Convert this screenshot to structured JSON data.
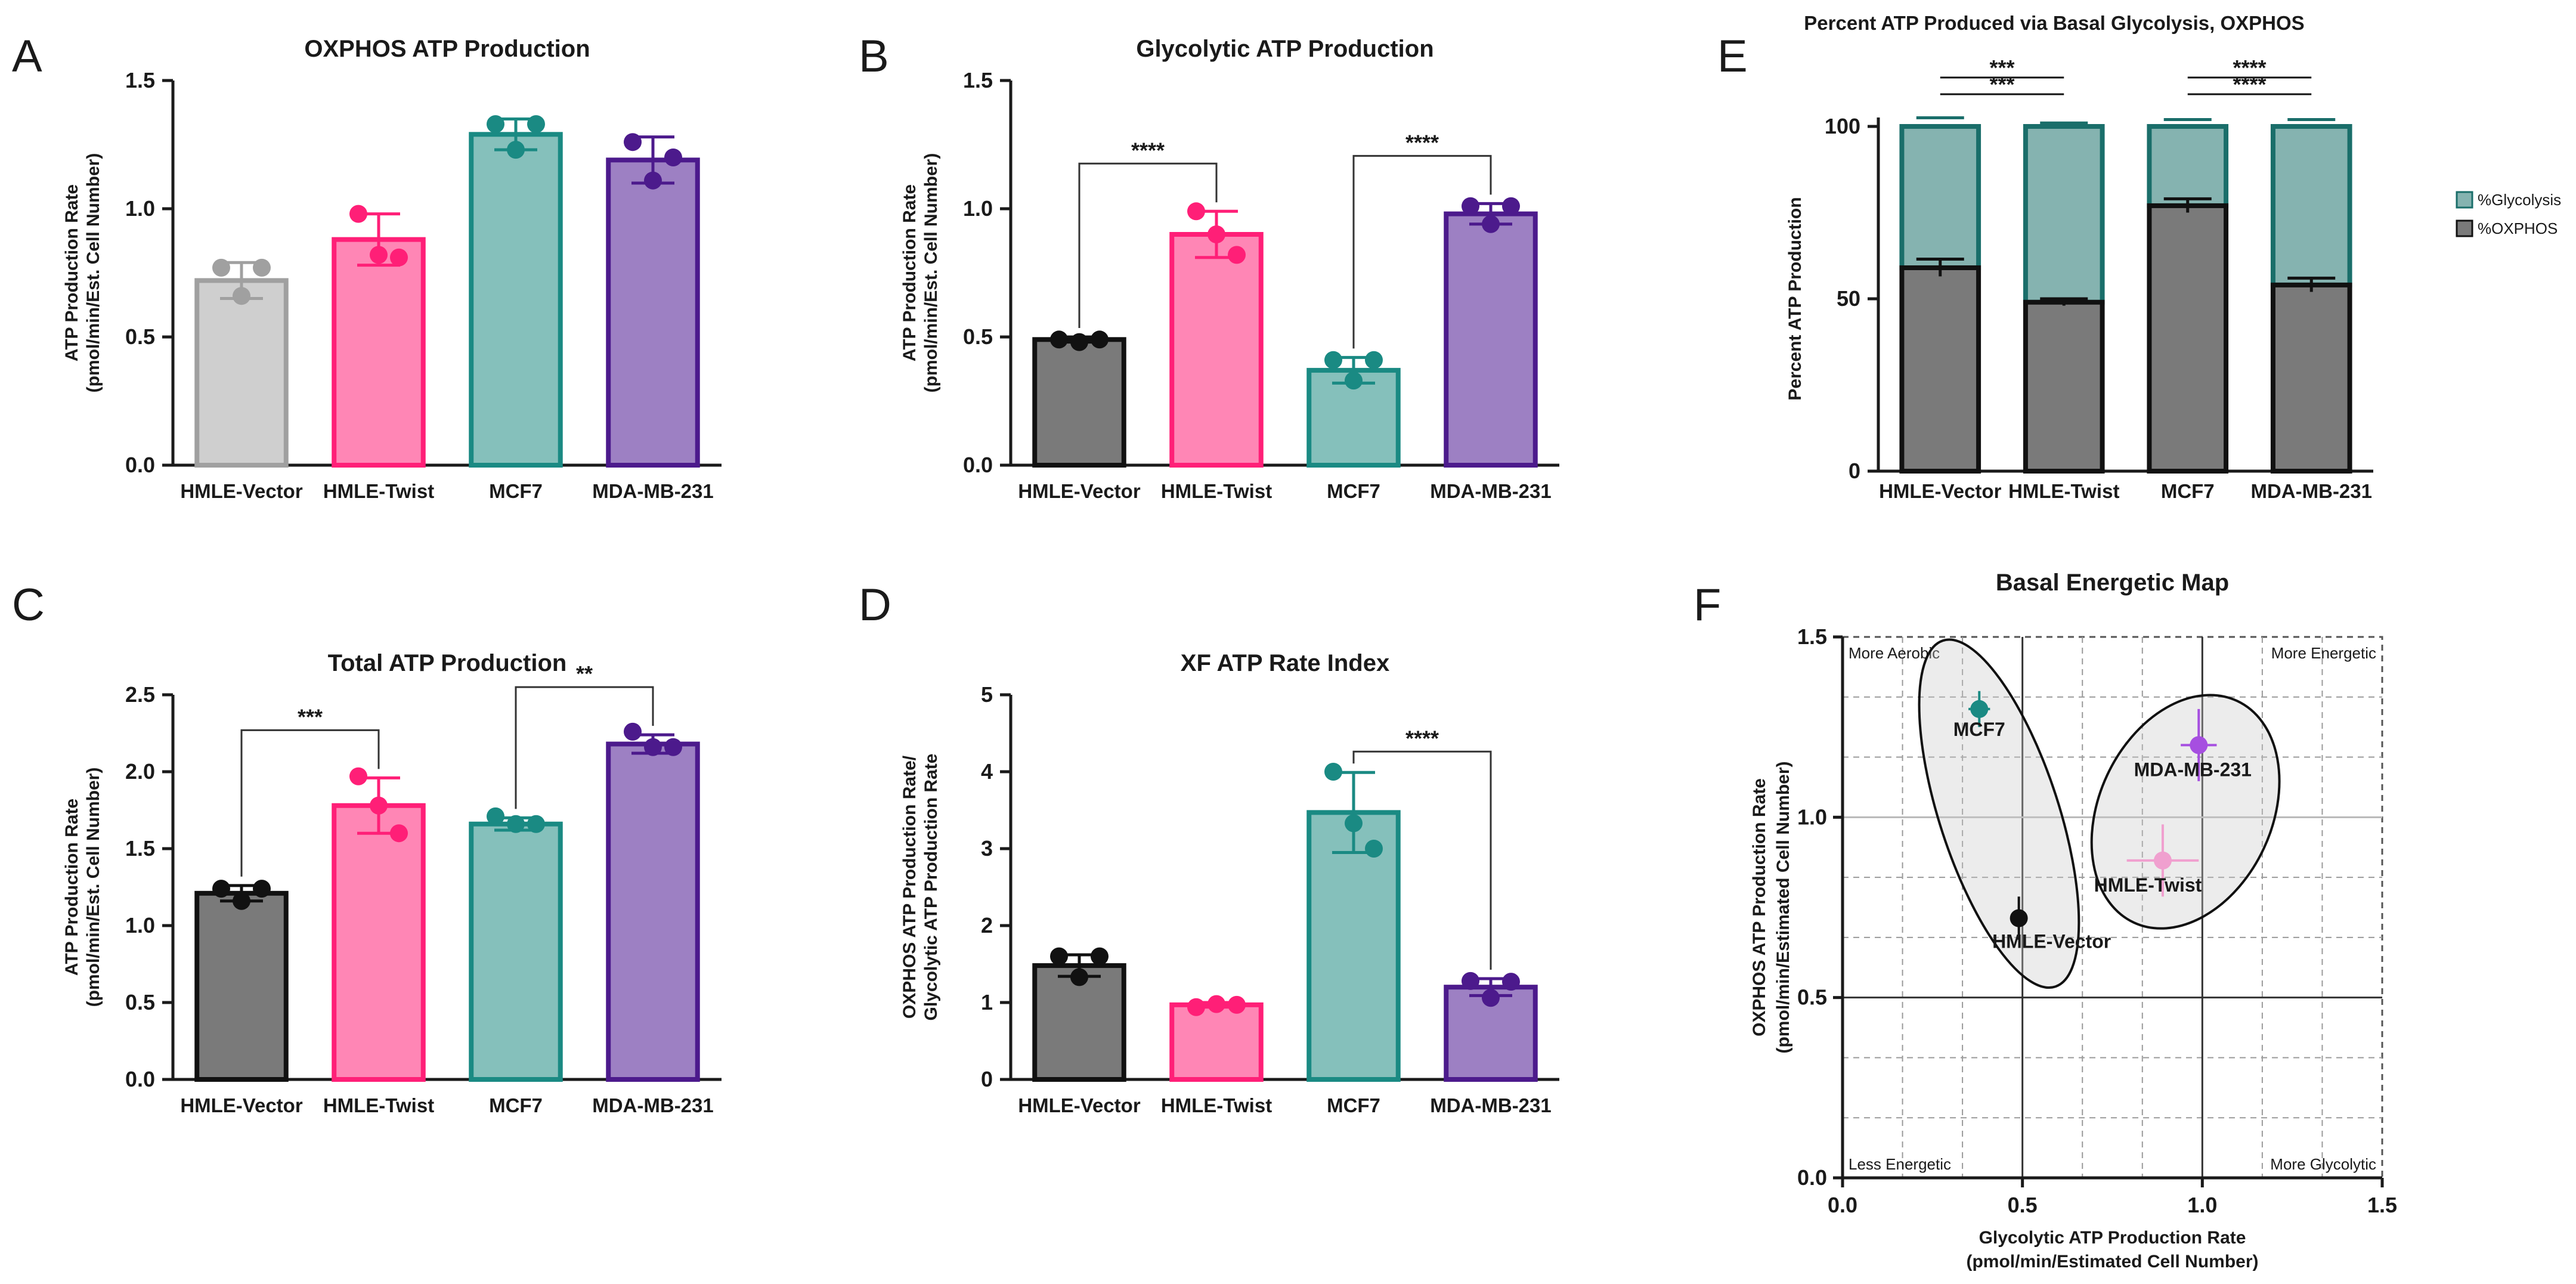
{
  "colors": {
    "vector": "#7a7a7a",
    "vector_light": "#cfcfcf",
    "vector_light_edge": "#a0a0a0",
    "twist": "#ff86b5",
    "twist_edge": "#ff1f77",
    "mcf7": "#85c0bb",
    "mcf7_edge": "#1a8a83",
    "mda": "#9d80c3",
    "mda_edge": "#4c1a8c",
    "glycolysis": "#85b3b0",
    "glycolysis_edge": "#1a6e6a",
    "oxphos": "#7a7a7a",
    "mcf7_dot": "#1a8a83",
    "mda_dot": "#a64fe0",
    "twist_dot": "#f0a0cf",
    "vector_dot": "#111111"
  },
  "chart_data": [
    {
      "id": "A",
      "type": "bar",
      "panel_letter": "A",
      "title": "OXPHOS ATP Production",
      "ylabel": [
        "ATP Production Rate",
        "(pmol/min/Est. Cell Number)"
      ],
      "categories": [
        "HMLE-Vector",
        "HMLE-Twist",
        "MCF7",
        "MDA-MB-231"
      ],
      "values": [
        0.72,
        0.88,
        1.29,
        1.19
      ],
      "errors": [
        0.07,
        0.1,
        0.06,
        0.09
      ],
      "points": [
        [
          0.77,
          0.77,
          0.66
        ],
        [
          0.98,
          0.81,
          0.82
        ],
        [
          1.33,
          1.33,
          1.23
        ],
        [
          1.26,
          1.2,
          1.11
        ]
      ],
      "ylim": [
        0,
        1.5
      ],
      "yticks": [
        "0.0",
        "0.5",
        "1.0",
        "1.5"
      ],
      "significance": []
    },
    {
      "id": "B",
      "type": "bar",
      "panel_letter": "B",
      "title": "Glycolytic ATP Production",
      "ylabel": [
        "ATP Production Rate",
        "(pmol/min/Est. Cell Number)"
      ],
      "categories": [
        "HMLE-Vector",
        "HMLE-Twist",
        "MCF7",
        "MDA-MB-231"
      ],
      "values": [
        0.49,
        0.9,
        0.37,
        0.98
      ],
      "errors": [
        0.01,
        0.09,
        0.05,
        0.04
      ],
      "points": [
        [
          0.49,
          0.49,
          0.48
        ],
        [
          0.99,
          0.82,
          0.9
        ],
        [
          0.41,
          0.41,
          0.33
        ],
        [
          1.01,
          1.01,
          0.94
        ]
      ],
      "ylim": [
        0,
        1.5
      ],
      "yticks": [
        "0.0",
        "0.5",
        "1.0",
        "1.5"
      ],
      "significance": [
        {
          "from": 0,
          "to": 1,
          "label": "****"
        },
        {
          "from": 2,
          "to": 3,
          "label": "****"
        }
      ]
    },
    {
      "id": "C",
      "type": "bar",
      "panel_letter": "C",
      "title": "Total ATP Production",
      "ylabel": [
        "ATP Production Rate",
        "(pmol/min/Est. Cell Number)"
      ],
      "categories": [
        "HMLE-Vector",
        "HMLE-Twist",
        "MCF7",
        "MDA-MB-231"
      ],
      "values": [
        1.21,
        1.78,
        1.66,
        2.18
      ],
      "errors": [
        0.05,
        0.18,
        0.04,
        0.06
      ],
      "points": [
        [
          1.24,
          1.24,
          1.16
        ],
        [
          1.97,
          1.6,
          1.78
        ],
        [
          1.71,
          1.66,
          1.66
        ],
        [
          2.26,
          2.16,
          2.16
        ]
      ],
      "ylim": [
        0,
        2.5
      ],
      "yticks": [
        "0.0",
        "0.5",
        "1.0",
        "1.5",
        "2.0",
        "2.5"
      ],
      "significance": [
        {
          "from": 0,
          "to": 1,
          "label": "***"
        },
        {
          "from": 2,
          "to": 3,
          "label": "**"
        }
      ]
    },
    {
      "id": "D",
      "type": "bar",
      "panel_letter": "D",
      "title": "XF ATP Rate Index",
      "ylabel": [
        "OXPHOS ATP Production Rate/",
        "Glycolytic ATP Production Rate"
      ],
      "categories": [
        "HMLE-Vector",
        "HMLE-Twist",
        "MCF7",
        "MDA-MB-231"
      ],
      "values": [
        1.48,
        0.97,
        3.47,
        1.2
      ],
      "errors": [
        0.14,
        0.03,
        0.52,
        0.11
      ],
      "points": [
        [
          1.6,
          1.6,
          1.33
        ],
        [
          0.94,
          0.97,
          0.98
        ],
        [
          4.0,
          3.0,
          3.33
        ],
        [
          1.28,
          1.27,
          1.06
        ]
      ],
      "ylim": [
        0,
        5
      ],
      "yticks": [
        "0",
        "1",
        "2",
        "3",
        "4",
        "5"
      ],
      "significance": [
        {
          "from": 2,
          "to": 3,
          "label": "****"
        }
      ]
    }
  ],
  "chart_e": {
    "type": "bar",
    "panel_letter": "E",
    "title": "Percent ATP Produced via Basal Glycolysis, OXPHOS",
    "ylabel": "Percent ATP Production",
    "categories": [
      "HMLE-Vector",
      "HMLE-Twist",
      "MCF7",
      "MDA-MB-231"
    ],
    "series": [
      {
        "name": "%Glycolysis",
        "values": [
          41,
          51,
          23,
          46
        ]
      },
      {
        "name": "%OXPHOS",
        "values": [
          59,
          49,
          77,
          54
        ]
      }
    ],
    "oxphos_errors": [
      2.5,
      1.0,
      2.0,
      2.0
    ],
    "total_errors": [
      2.5,
      1.0,
      2.0,
      2.0
    ],
    "ylim": [
      0,
      100
    ],
    "yticks": [
      "0",
      "50",
      "100"
    ],
    "significance": [
      {
        "from": 0,
        "to": 1,
        "label": "***"
      },
      {
        "from": 0,
        "to": 1,
        "label": "***"
      },
      {
        "from": 2,
        "to": 3,
        "label": "****"
      },
      {
        "from": 2,
        "to": 3,
        "label": "****"
      }
    ],
    "legend": [
      "%Glycolysis",
      "%OXPHOS"
    ]
  },
  "chart_f": {
    "type": "scatter",
    "panel_letter": "F",
    "title": "Basal Energetic Map",
    "xlabel": [
      "Glycolytic ATP Production Rate",
      "(pmol/min/Estimated Cell Number)"
    ],
    "ylabel": [
      "OXPHOS ATP Production Rate",
      "(pmol/min/Estimated Cell Number)"
    ],
    "xlim": [
      0,
      1.5
    ],
    "ylim": [
      0,
      1.5
    ],
    "xticks": [
      "0.0",
      "0.5",
      "1.0",
      "1.5"
    ],
    "yticks": [
      "0.0",
      "0.5",
      "1.0",
      "1.5"
    ],
    "points": [
      {
        "name": "MCF7",
        "x": 0.38,
        "y": 1.3,
        "xerr": 0.03,
        "yerr": 0.05
      },
      {
        "name": "MDA-MB-231",
        "x": 0.99,
        "y": 1.2,
        "xerr": 0.05,
        "yerr": 0.1
      },
      {
        "name": "HMLE-Twist",
        "x": 0.89,
        "y": 0.88,
        "xerr": 0.1,
        "yerr": 0.1
      },
      {
        "name": "HMLE-Vector",
        "x": 0.49,
        "y": 0.72,
        "xerr": 0.01,
        "yerr": 0.06
      }
    ],
    "quadrants": {
      "top_left": "More Aerobic",
      "top_right": "More Energetic",
      "bottom_left": "Less Energetic",
      "bottom_right": "More Glycolytic"
    }
  }
}
